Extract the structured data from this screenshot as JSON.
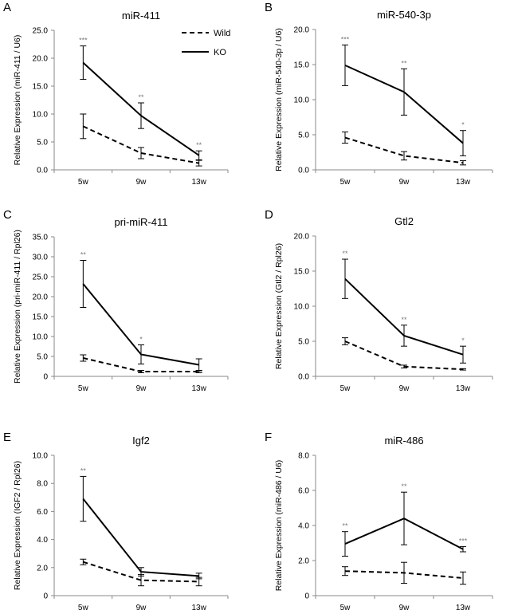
{
  "legend": {
    "wild": "Wild",
    "ko": "KO"
  },
  "chart_data": [
    {
      "type": "line",
      "panel": "A",
      "title": "miR-411",
      "ylabel": "Relative Expression (miR-411 / U6)",
      "categories": [
        "5w",
        "9w",
        "13w"
      ],
      "ylim": [
        0,
        25
      ],
      "yticks": [
        "0.0",
        "5.0",
        "10.0",
        "15.0",
        "20.0",
        "25.0"
      ],
      "series": [
        {
          "name": "Wild",
          "values": [
            7.8,
            3.0,
            1.2
          ],
          "errors": [
            2.2,
            1.0,
            0.5
          ]
        },
        {
          "name": "KO",
          "values": [
            19.2,
            9.7,
            2.6
          ],
          "errors": [
            3.0,
            2.3,
            0.8
          ]
        }
      ],
      "significance": [
        "***",
        "**",
        "**"
      ]
    },
    {
      "type": "line",
      "panel": "B",
      "title": "miR-540-3p",
      "ylabel": "Relative Expression (miR-540-3p / U6)",
      "categories": [
        "5w",
        "9w",
        "13w"
      ],
      "ylim": [
        0,
        20
      ],
      "yticks": [
        "0.0",
        "5.0",
        "10.0",
        "15.0",
        "20.0"
      ],
      "series": [
        {
          "name": "Wild",
          "values": [
            4.6,
            2.0,
            1.0
          ],
          "errors": [
            0.8,
            0.6,
            0.3
          ]
        },
        {
          "name": "KO",
          "values": [
            14.9,
            11.1,
            3.8
          ],
          "errors": [
            2.9,
            3.3,
            1.8
          ]
        }
      ],
      "significance": [
        "***",
        "**",
        "*"
      ]
    },
    {
      "type": "line",
      "panel": "C",
      "title": "pri-miR-411",
      "ylabel": "Relative Expression (pri-miR-411 / Rpl26)",
      "categories": [
        "5w",
        "9w",
        "13w"
      ],
      "ylim": [
        0,
        35
      ],
      "yticks": [
        "0",
        "5.0",
        "10.0",
        "15.0",
        "20.0",
        "25.0",
        "30.0",
        "35.0"
      ],
      "series": [
        {
          "name": "Wild",
          "values": [
            4.6,
            1.2,
            1.2
          ],
          "errors": [
            0.8,
            0.3,
            0.3
          ]
        },
        {
          "name": "KO",
          "values": [
            23.2,
            5.5,
            2.9
          ],
          "errors": [
            5.9,
            2.4,
            1.5
          ]
        }
      ],
      "significance": [
        "**",
        "*",
        ""
      ]
    },
    {
      "type": "line",
      "panel": "D",
      "title": "Gtl2",
      "ylabel": "Relative Expression (Gtl2 / Rpl26)",
      "categories": [
        "5w",
        "9w",
        "13w"
      ],
      "ylim": [
        0,
        20
      ],
      "yticks": [
        "0.0",
        "5.0",
        "10.0",
        "15.0",
        "20.0"
      ],
      "series": [
        {
          "name": "Wild",
          "values": [
            5.0,
            1.4,
            1.0
          ],
          "errors": [
            0.5,
            0.2,
            0.1
          ]
        },
        {
          "name": "KO",
          "values": [
            13.9,
            5.8,
            3.1
          ],
          "errors": [
            2.8,
            1.5,
            1.2
          ]
        }
      ],
      "significance": [
        "**",
        "**",
        "*"
      ]
    },
    {
      "type": "line",
      "panel": "E",
      "title": "Igf2",
      "ylabel": "Relative Expression (IGF2 / Rpl26)",
      "categories": [
        "5w",
        "9w",
        "13w"
      ],
      "ylim": [
        0,
        10
      ],
      "yticks": [
        "0",
        "2.0",
        "4.0",
        "6.0",
        "8.0",
        "10.0"
      ],
      "series": [
        {
          "name": "Wild",
          "values": [
            2.4,
            1.1,
            1.0
          ],
          "errors": [
            0.2,
            0.4,
            0.3
          ]
        },
        {
          "name": "KO",
          "values": [
            6.9,
            1.7,
            1.4
          ],
          "errors": [
            1.6,
            0.3,
            0.2
          ]
        }
      ],
      "significance": [
        "**",
        "",
        ""
      ]
    },
    {
      "type": "line",
      "panel": "F",
      "title": "miR-486",
      "ylabel": "Relative Expression (miR-486 / U6)",
      "categories": [
        "5w",
        "9w",
        "13w"
      ],
      "ylim": [
        0,
        8
      ],
      "yticks": [
        "0",
        "2.0",
        "4.0",
        "6.0",
        "8.0"
      ],
      "series": [
        {
          "name": "Wild",
          "values": [
            1.4,
            1.3,
            1.0
          ],
          "errors": [
            0.25,
            0.6,
            0.35
          ]
        },
        {
          "name": "KO",
          "values": [
            2.95,
            4.4,
            2.65
          ],
          "errors": [
            0.7,
            1.5,
            0.15
          ]
        }
      ],
      "significance": [
        "**",
        "**",
        "***"
      ]
    }
  ]
}
